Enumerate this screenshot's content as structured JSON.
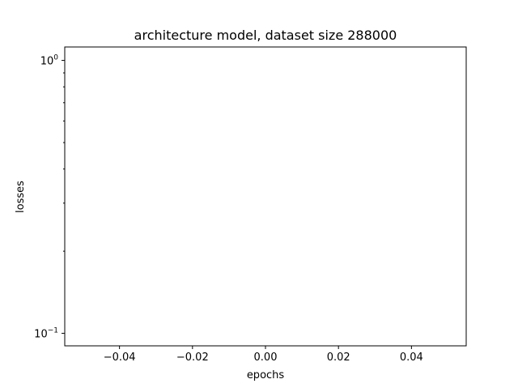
{
  "chart_data": {
    "type": "line",
    "title": "architecture model, dataset size 288000",
    "xlabel": "epochs",
    "ylabel": "losses",
    "x": [],
    "series": [],
    "xlim": [
      -0.055,
      0.055
    ],
    "ylim": [
      0.09,
      1.12
    ],
    "yscale": "log",
    "x_ticks": [
      -0.04,
      -0.02,
      0.0,
      0.02,
      0.04
    ],
    "x_tick_labels": [
      "−0.04",
      "−0.02",
      "0.00",
      "0.02",
      "0.04"
    ],
    "y_major_ticks": [
      0.1,
      1
    ],
    "y_major_tick_labels": [
      {
        "base": "10",
        "exponent": "−1"
      },
      {
        "base": "10",
        "exponent": "0"
      }
    ],
    "y_minor_ticks": [
      0.2,
      0.3,
      0.4,
      0.5,
      0.6,
      0.7,
      0.8,
      0.9
    ],
    "grid": false,
    "legend": "none"
  }
}
